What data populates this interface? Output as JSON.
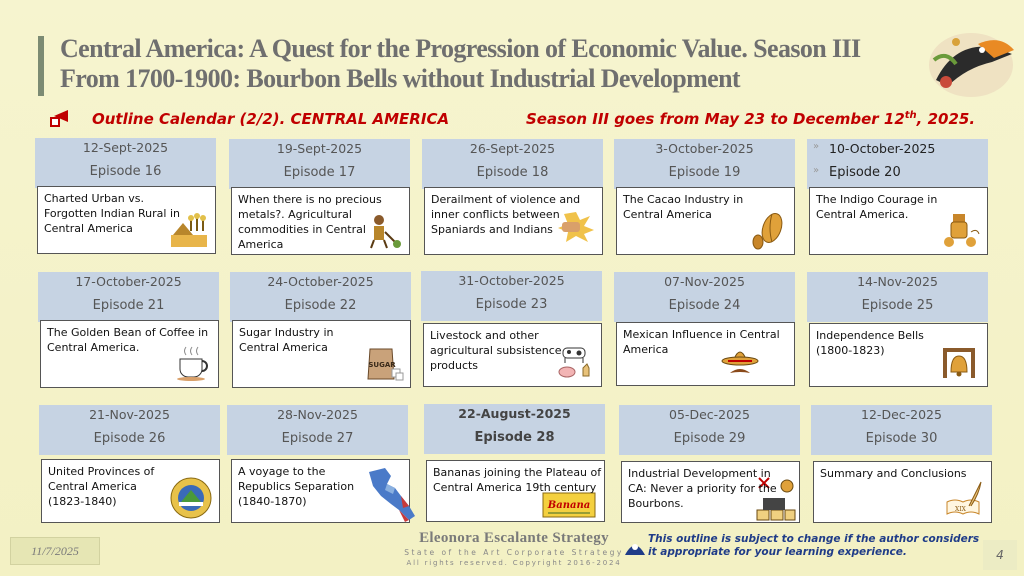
{
  "title": {
    "line1": "Central America:  A Quest for the Progression of  Economic Value. Season III",
    "line2": "From 1700-1900: Bourbon Bells without Industrial Development"
  },
  "subheader": {
    "left": "Outline Calendar (2/2).  CENTRAL AMERICA",
    "right_prefix": "Season III goes from May 23 to December 12",
    "right_sup": "th",
    "right_suffix": ", 2025."
  },
  "episodes": [
    {
      "date": "12-Sept-2025",
      "episode": "Episode 16",
      "text": "Charted Urban vs. Forgotten Indian Rural in Central America",
      "icon": "farm-icon"
    },
    {
      "date": "19-Sept-2025",
      "episode": "Episode 17",
      "text": "When there is no precious metals?.  Agricultural commodities in Central America",
      "icon": "farmer-icon"
    },
    {
      "date": "26-Sept-2025",
      "episode": "Episode 18",
      "text": "Derailment of violence and inner conflicts between Spaniards and Indians",
      "icon": "fist-icon"
    },
    {
      "date": "3-October-2025",
      "episode": "Episode 19",
      "text": "The Cacao Industry in Central America",
      "icon": "cacao-icon"
    },
    {
      "date": "10-October-2025",
      "episode": "Episode 20",
      "text": "The Indigo Courage in Central America.",
      "icon": "indigo-icon"
    },
    {
      "date": "17-October-2025",
      "episode": "Episode 21",
      "text": "The Golden Bean of Coffee in Central America.",
      "icon": "coffee-icon"
    },
    {
      "date": "24-October-2025",
      "episode": "Episode 22",
      "text": "Sugar Industry in Central America",
      "icon": "sugar-icon",
      "icon_label": "SUGAR"
    },
    {
      "date": "31-October-2025",
      "episode": "Episode 23",
      "text": "Livestock and other agricultural subsistence products",
      "icon": "livestock-icon"
    },
    {
      "date": "07-Nov-2025",
      "episode": "Episode 24",
      "text": "Mexican Influence in Central America",
      "icon": "sombrero-icon"
    },
    {
      "date": "14-Nov-2025",
      "episode": "Episode 25",
      "text": "Independence Bells (1800-1823)",
      "icon": "bell-icon"
    },
    {
      "date": "21-Nov-2025",
      "episode": "Episode 26",
      "text": "United Provinces of Central America (1823-1840)",
      "icon": "coat-of-arms-icon"
    },
    {
      "date": "28-Nov-2025",
      "episode": "Episode 27",
      "text": "A voyage to the Republics Separation  (1840-1870)",
      "icon": "map-icon"
    },
    {
      "date": "22-August-2025",
      "episode": "Episode 28",
      "text": "Bananas joining the Plateau of Central America 19th century",
      "icon": "banana-label-icon",
      "icon_label": "Banana"
    },
    {
      "date": "05-Dec-2025",
      "episode": "Episode 29",
      "text": "Industrial Development in CA: Never a priority for the Bourbons.",
      "icon": "industry-icon"
    },
    {
      "date": "12-Dec-2025",
      "episode": "Episode 30",
      "text": "Summary and Conclusions",
      "icon": "quill-icon",
      "icon_label": "XIX"
    }
  ],
  "footer": {
    "date": "11/7/2025",
    "brand": "Eleonora Escalante Strategy",
    "tagline": "State of the Art Corporate Strategy",
    "rights": "All rights reserved. Copyright 2016-2024",
    "disclaimer": "This outline is subject to change if the author considers it appropriate for your learning experience.",
    "page": "4"
  },
  "colors": {
    "background": "#f5f3c9",
    "header_cell": "#c6d3e3",
    "accent_red": "#c00000",
    "title_gray": "#6f6f6f",
    "disclaimer_blue": "#1f3c88"
  }
}
